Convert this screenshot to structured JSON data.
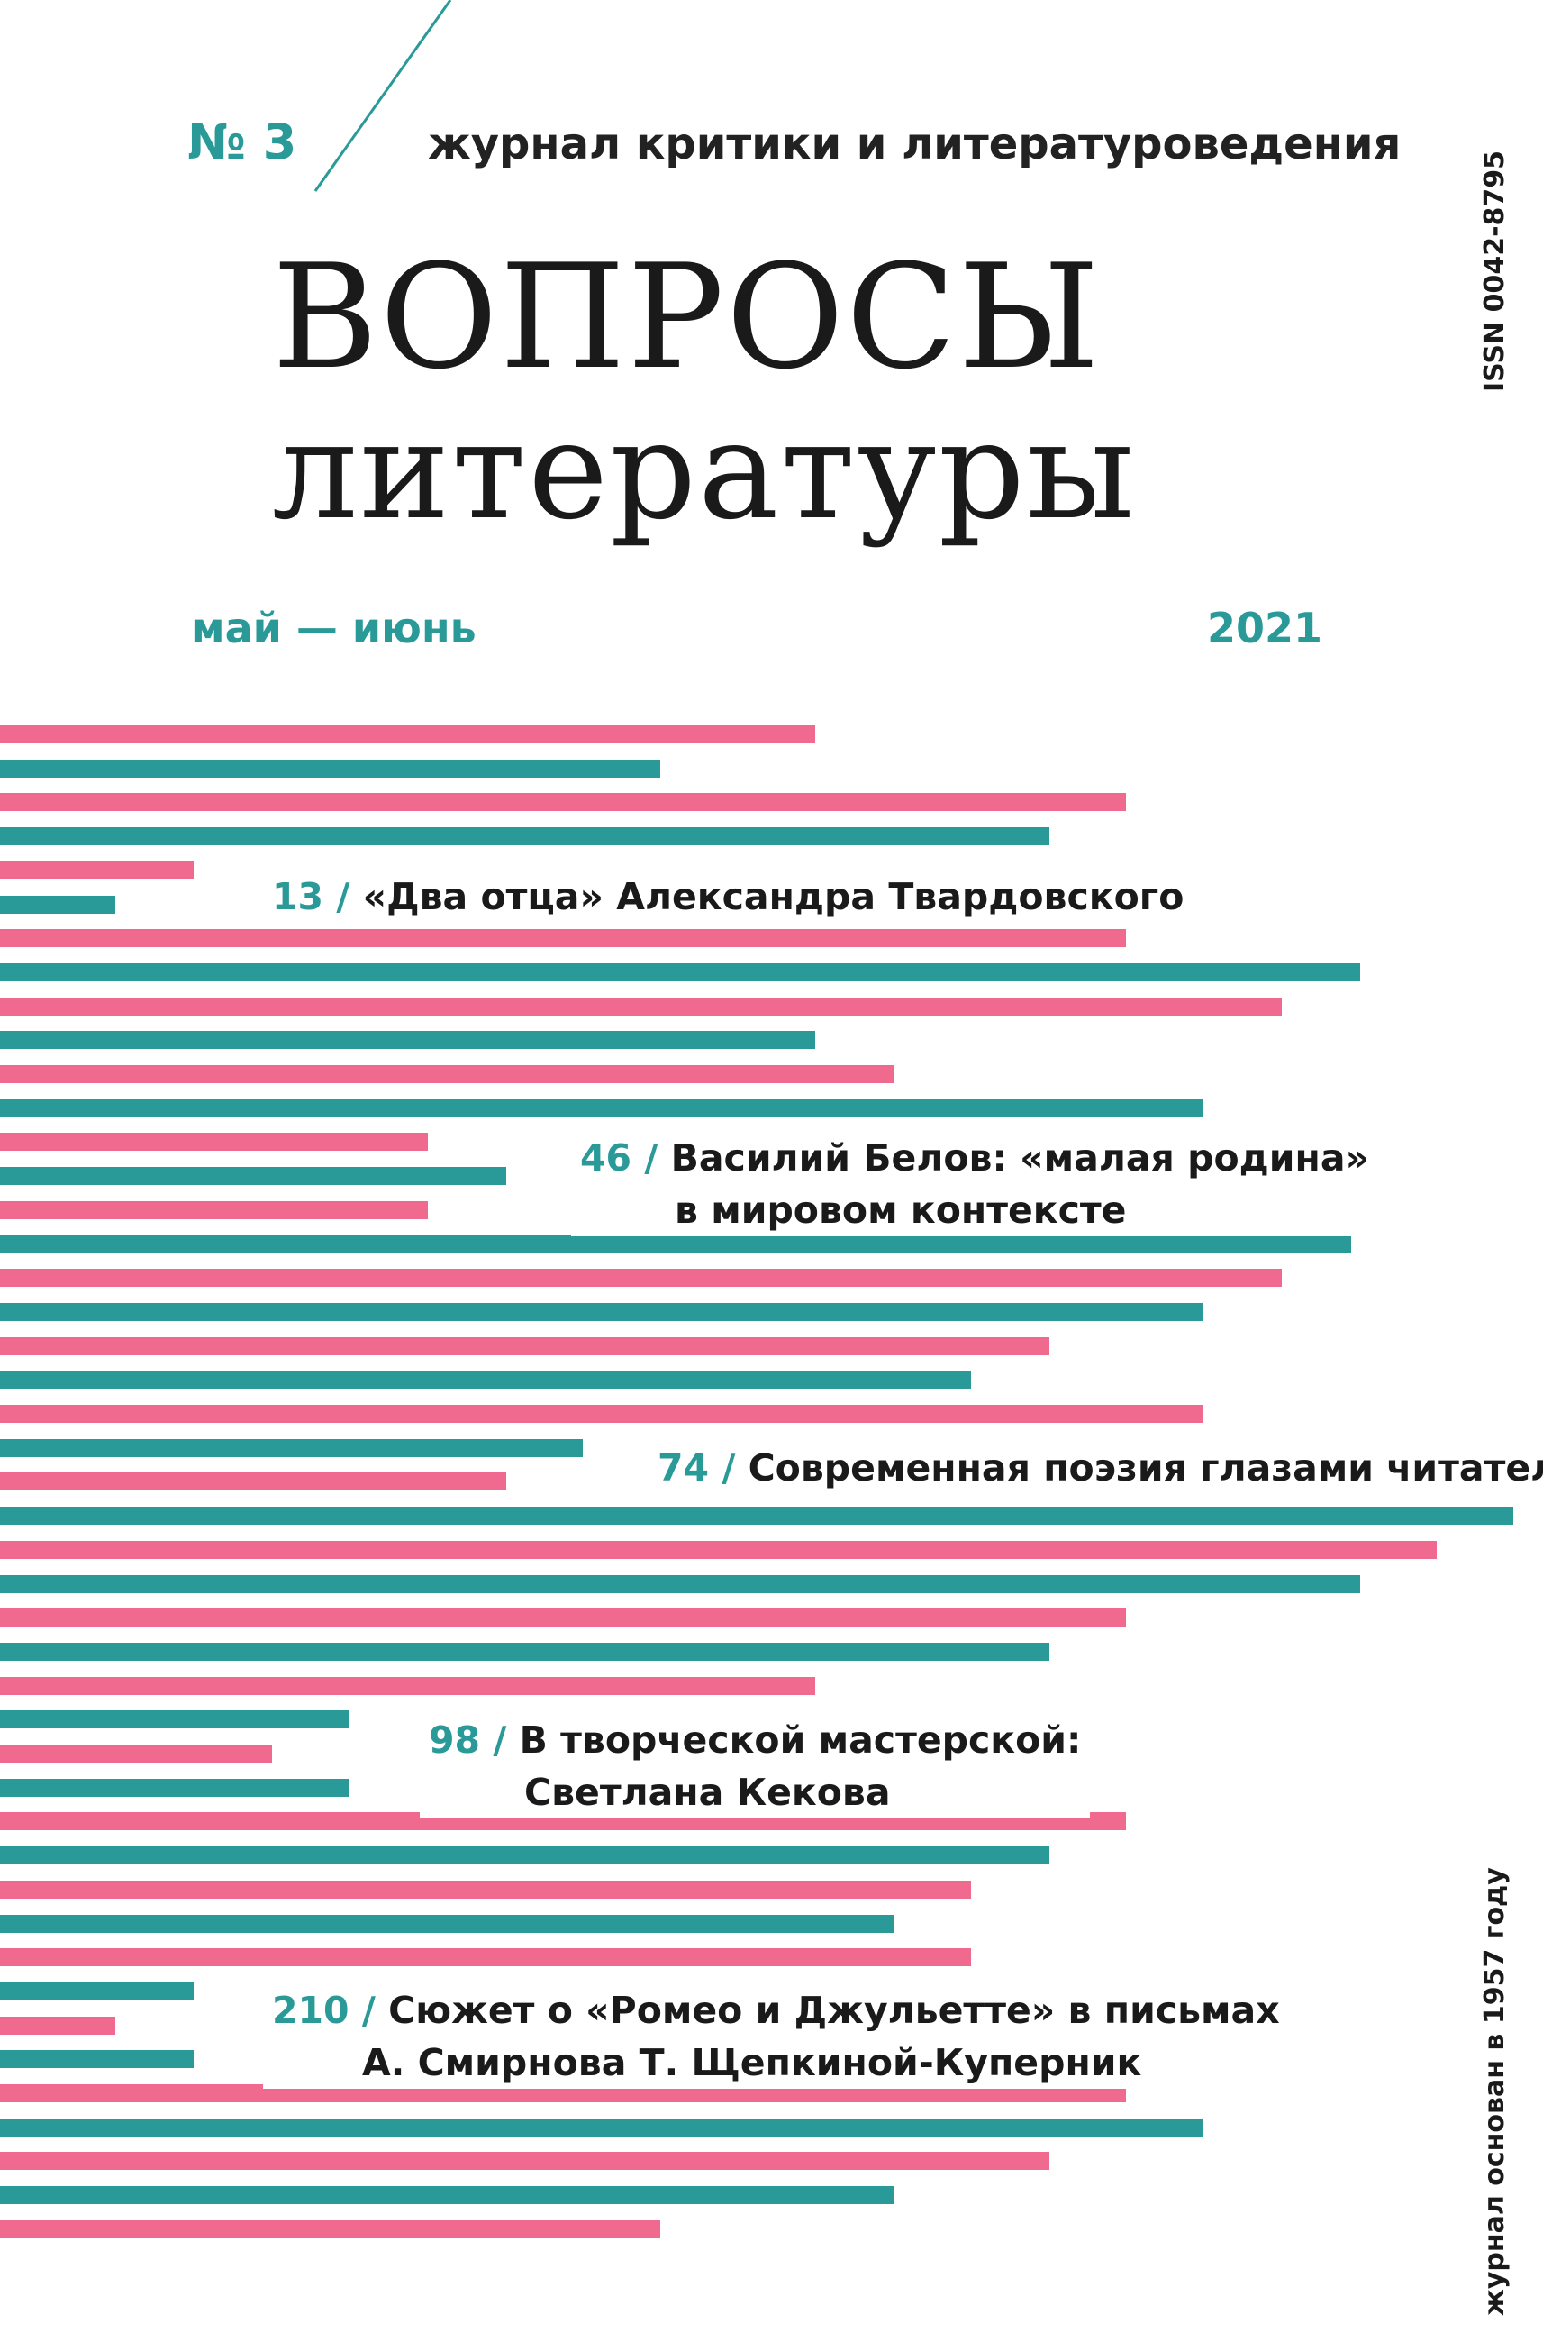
{
  "header": {
    "issue_number": "№ 3",
    "subtitle": "журнал критики и литературоведения",
    "title_line1": "ВОПРОСЫ",
    "title_line2": "литературы",
    "months": "май — июнь",
    "year": "2021",
    "issn": "ISSN 0042-8795",
    "founded": "журнал основан в 1957 году"
  },
  "toc": [
    {
      "page": "13 /",
      "line1": "«Два отца» Александра Твардовского",
      "line2": ""
    },
    {
      "page": "46 /",
      "line1": "Василий Белов: «малая родина»",
      "line2": "в мировом контексте"
    },
    {
      "page": "74 /",
      "line1": "Современная поэзия глазами читателя",
      "line2": ""
    },
    {
      "page": "98 /",
      "line1": "В творческой мастерской:",
      "line2": "Светлана Кекова"
    },
    {
      "page": "210 /",
      "line1": "Сюжет о «Ромео и Джульетте» в письмах",
      "line2": "А. Смирнова Т. Щепкиной-Куперник"
    }
  ],
  "colors": {
    "pink": "#ef6a8e",
    "teal": "#2a9a98"
  }
}
